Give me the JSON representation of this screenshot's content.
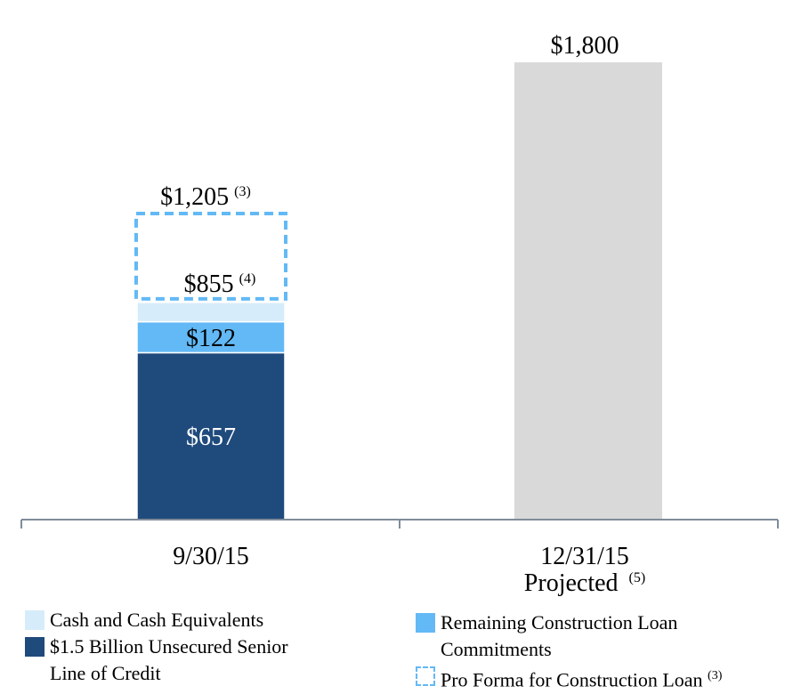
{
  "chart_data": {
    "type": "bar",
    "categories": [
      {
        "line1": "9/30/15",
        "line2": "",
        "note": ""
      },
      {
        "line1": "12/31/15",
        "line2": "Projected",
        "note": "(5)"
      }
    ],
    "stack": {
      "category_index": 0,
      "segments": [
        {
          "name": "$1.5 Billion Unsecured Senior Line of Credit",
          "value": 657,
          "label": "$657",
          "color": "#1f4a7c",
          "label_color": "#ffffff"
        },
        {
          "name": "Remaining Construction Loan Commitments",
          "value": 122,
          "label": "$122",
          "color": "#63b9f5",
          "label_color": "#000000"
        },
        {
          "name": "Cash and Cash Equivalents",
          "value": 76,
          "label": "",
          "color": "#d6ecfa",
          "label_color": "#000000"
        }
      ],
      "total_label": "$855",
      "total_note": "(4)",
      "pro_forma": {
        "name": "Pro Forma for Construction Loan",
        "value": 1205,
        "label": "$1,205",
        "note": "(3)",
        "color": "#63b9f5"
      }
    },
    "projected": {
      "category_index": 1,
      "value": 1800,
      "label": "$1,800",
      "color": "#d9d9d9"
    },
    "ylim": [
      0,
      1950
    ],
    "axis_color": "#7f8c9a"
  },
  "legend": {
    "cash": {
      "label": "Cash and Cash Equivalents",
      "color": "#d6ecfa"
    },
    "line_of_credit": {
      "line1": "$1.5 Billion Unsecured Senior",
      "line2": "Line of Credit",
      "color": "#1f4a7c"
    },
    "construction": {
      "line1": "Remaining Construction Loan",
      "line2": "Commitments",
      "color": "#63b9f5"
    },
    "pro_forma": {
      "label": "Pro Forma for Construction Loan",
      "note": "(3)",
      "color": "#63b9f5"
    }
  }
}
